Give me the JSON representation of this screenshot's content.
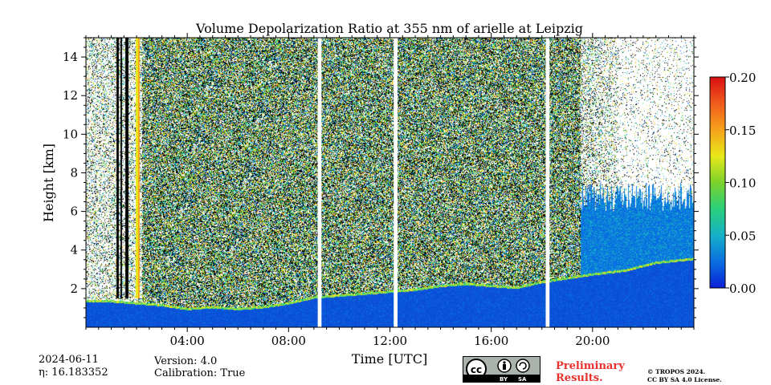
{
  "chart_data": {
    "type": "heatmap",
    "title": "Volume Depolarization Ratio at 355 nm of arielle at Leipzig",
    "xlabel": "Time [UTC]",
    "ylabel": "Height [km]",
    "xlim_hours": [
      0,
      24
    ],
    "ylim_km": [
      0,
      15
    ],
    "x_ticks": [
      {
        "hour": 4,
        "label": "04:00"
      },
      {
        "hour": 8,
        "label": "08:00"
      },
      {
        "hour": 12,
        "label": "12:00"
      },
      {
        "hour": 16,
        "label": "16:00"
      },
      {
        "hour": 20,
        "label": "20:00"
      }
    ],
    "y_ticks": [
      {
        "value": 2,
        "label": "2"
      },
      {
        "value": 4,
        "label": "4"
      },
      {
        "value": 6,
        "label": "6"
      },
      {
        "value": 8,
        "label": "8"
      },
      {
        "value": 10,
        "label": "10"
      },
      {
        "value": 12,
        "label": "12"
      },
      {
        "value": 14,
        "label": "14"
      }
    ],
    "colorbar": {
      "range": [
        0.0,
        0.2
      ],
      "ticks": [
        {
          "value": 0.0,
          "label": "0.00"
        },
        {
          "value": 0.05,
          "label": "0.05"
        },
        {
          "value": 0.1,
          "label": "0.10"
        },
        {
          "value": 0.15,
          "label": "0.15"
        },
        {
          "value": 0.2,
          "label": "0.20"
        }
      ],
      "colormap": [
        "#0b1fd6",
        "#0a6fe0",
        "#16b0c8",
        "#2ad07a",
        "#7ad22b",
        "#e8e81a",
        "#f5a21b",
        "#f05b1c",
        "#d90f12"
      ]
    },
    "data_gaps_hours": [
      [
        9.15,
        9.3
      ],
      [
        12.15,
        12.3
      ],
      [
        18.15,
        18.3
      ]
    ],
    "boundary_layer_top_km": [
      {
        "hour": 0.2,
        "km": 1.4
      },
      {
        "hour": 1.0,
        "km": 1.4
      },
      {
        "hour": 2.0,
        "km": 1.3
      },
      {
        "hour": 3.0,
        "km": 1.2
      },
      {
        "hour": 4.0,
        "km": 1.0
      },
      {
        "hour": 5.0,
        "km": 1.1
      },
      {
        "hour": 6.0,
        "km": 1.0
      },
      {
        "hour": 7.0,
        "km": 1.1
      },
      {
        "hour": 8.0,
        "km": 1.3
      },
      {
        "hour": 9.0,
        "km": 1.6
      },
      {
        "hour": 10.0,
        "km": 1.7
      },
      {
        "hour": 11.0,
        "km": 1.8
      },
      {
        "hour": 12.0,
        "km": 1.9
      },
      {
        "hour": 13.0,
        "km": 2.0
      },
      {
        "hour": 14.0,
        "km": 2.2
      },
      {
        "hour": 15.0,
        "km": 2.3
      },
      {
        "hour": 16.0,
        "km": 2.2
      },
      {
        "hour": 17.0,
        "km": 2.1
      },
      {
        "hour": 18.0,
        "km": 2.4
      },
      {
        "hour": 19.0,
        "km": 2.6
      },
      {
        "hour": 20.0,
        "km": 2.8
      },
      {
        "hour": 21.3,
        "km": 3.0
      },
      {
        "hour": 22.5,
        "km": 3.4
      },
      {
        "hour": 24.0,
        "km": 3.6
      }
    ]
  },
  "metadata": {
    "date": "2024-06-11",
    "eta": "η: 16.183352",
    "version": "Version: 4.0",
    "calibration": "Calibration: True"
  },
  "footer": {
    "license_badge": {
      "cc": "cc",
      "by": "BY",
      "sa": "SA"
    },
    "preliminary_line1": "Preliminary",
    "preliminary_line2": "Results.",
    "copyright_line1": "© TROPOS 2024.",
    "copyright_line2": "CC BY SA 4.0 License."
  }
}
